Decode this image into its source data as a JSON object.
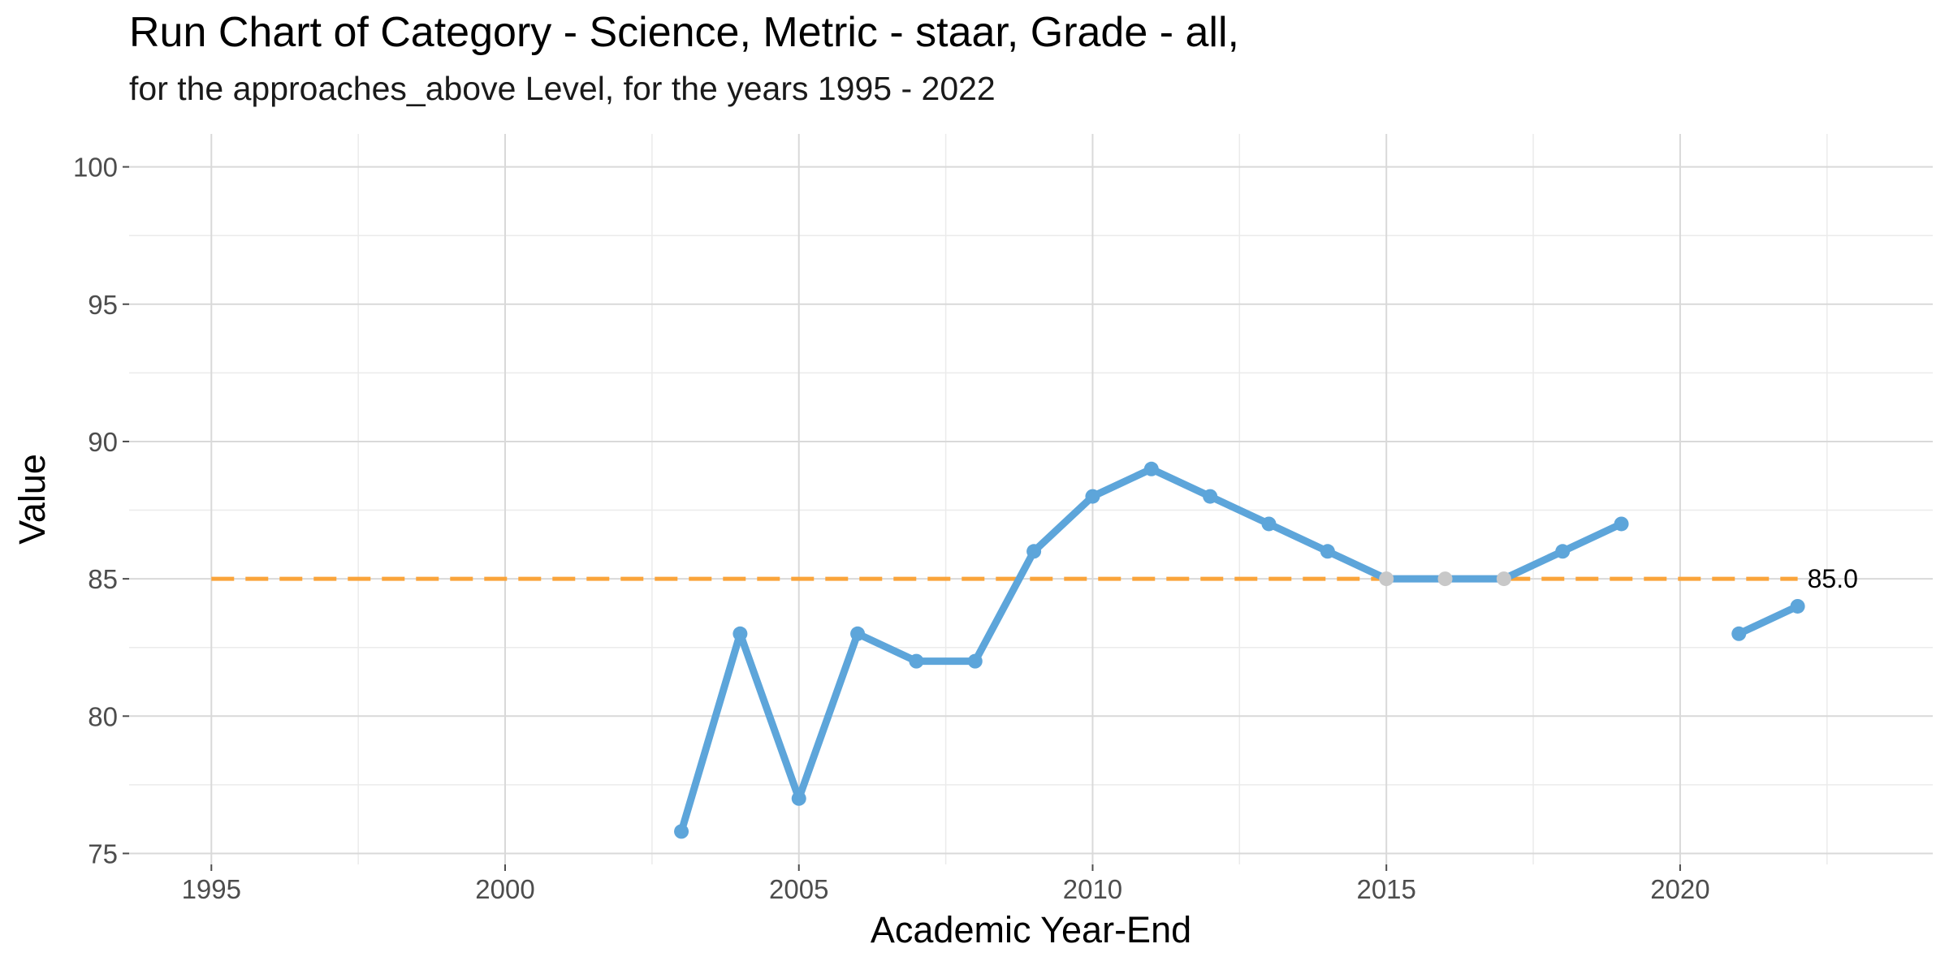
{
  "chart_data": {
    "type": "line",
    "title": "Run Chart of Category - Science, Metric - staar, Grade - all,",
    "subtitle": "for the approaches_above Level, for the years 1995 - 2022",
    "xlabel": "Academic Year-End",
    "ylabel": "Value",
    "xlim": [
      1993.6,
      2024.3
    ],
    "ylim": [
      74.6,
      101.2
    ],
    "x_ticks": [
      1995,
      2000,
      2005,
      2010,
      2015,
      2020
    ],
    "y_ticks": [
      75,
      80,
      85,
      90,
      95,
      100
    ],
    "grid": true,
    "series": [
      {
        "color": "#5da5da",
        "segments": [
          [
            {
              "x": 2003,
              "y": 75.8
            },
            {
              "x": 2004,
              "y": 83
            },
            {
              "x": 2005,
              "y": 77
            },
            {
              "x": 2006,
              "y": 83
            },
            {
              "x": 2007,
              "y": 82
            },
            {
              "x": 2008,
              "y": 82
            },
            {
              "x": 2009,
              "y": 86
            },
            {
              "x": 2010,
              "y": 88
            },
            {
              "x": 2011,
              "y": 89
            },
            {
              "x": 2012,
              "y": 88
            },
            {
              "x": 2013,
              "y": 87
            },
            {
              "x": 2014,
              "y": 86
            },
            {
              "x": 2015,
              "y": 85,
              "on_center": true
            },
            {
              "x": 2016,
              "y": 85,
              "on_center": true
            },
            {
              "x": 2017,
              "y": 85,
              "on_center": true
            },
            {
              "x": 2018,
              "y": 86
            },
            {
              "x": 2019,
              "y": 87
            }
          ],
          [
            {
              "x": 2021,
              "y": 83
            },
            {
              "x": 2022,
              "y": 84
            }
          ]
        ]
      }
    ],
    "reference_line": {
      "y": 85,
      "x_start": 1995,
      "x_end": 2022,
      "label": "85.0",
      "color": "#faa43a",
      "style": "dashed"
    },
    "on_center_point_color": "#c8c8c8"
  }
}
